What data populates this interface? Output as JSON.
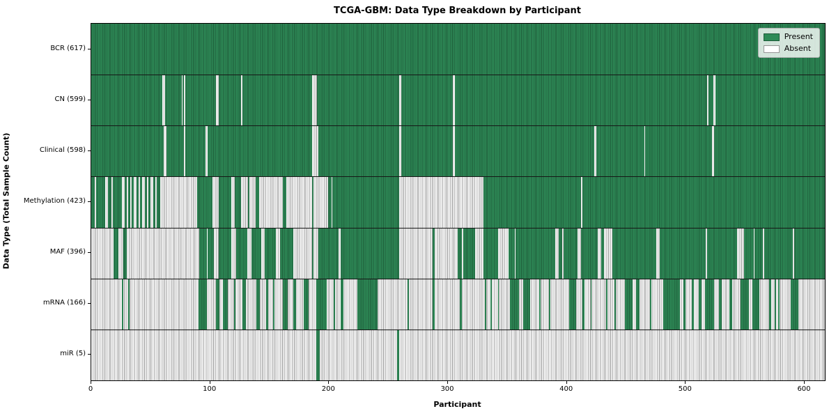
{
  "chart_data": {
    "type": "heatmap",
    "title": "TCGA-GBM: Data Type Breakdown by Participant",
    "xlabel": "Participant",
    "ylabel": "Data Type (Total Sample Count)",
    "x_ticks": [
      0,
      100,
      200,
      300,
      400,
      500,
      600
    ],
    "x_max": 617,
    "grid": false,
    "legend": {
      "position": "upper right",
      "entries": [
        {
          "label": "Present",
          "color": "#2e8b57"
        },
        {
          "label": "Absent",
          "color": "#ffffff"
        }
      ]
    },
    "colors": {
      "present": "#2e8b57",
      "present_edge": "#1d5a38",
      "absent": "#ffffff",
      "absent_edge": "#949494",
      "axis": "#000000",
      "row_separator": "#161616"
    },
    "rows": [
      {
        "id": "bcr",
        "label": "BCR (617)",
        "data_type": "BCR",
        "present_count": 617,
        "base": "present",
        "runs": []
      },
      {
        "id": "cn",
        "label": "CN (599)",
        "data_type": "CN",
        "present_count": 599,
        "base": "present",
        "runs": [
          [
            60,
            62
          ],
          [
            76,
            77
          ],
          [
            78,
            79
          ],
          [
            105,
            107
          ],
          [
            126,
            127
          ],
          [
            186,
            190
          ],
          [
            259,
            261
          ],
          [
            304,
            306
          ],
          [
            518,
            519
          ],
          [
            523,
            525
          ]
        ]
      },
      {
        "id": "clinical",
        "label": "Clinical (598)",
        "data_type": "Clinical",
        "present_count": 598,
        "base": "present",
        "runs": [
          [
            61,
            63
          ],
          [
            78,
            79
          ],
          [
            96,
            98
          ],
          [
            186,
            191
          ],
          [
            259,
            261
          ],
          [
            304,
            306
          ],
          [
            423,
            425
          ],
          [
            465,
            466
          ],
          [
            522,
            524
          ]
        ]
      },
      {
        "id": "methylation",
        "label": "Methylation (423)",
        "data_type": "Methylation",
        "present_count": 423,
        "base": "present",
        "runs": [
          [
            3,
            4
          ],
          [
            12,
            14
          ],
          [
            17,
            18
          ],
          [
            26,
            28
          ],
          [
            30,
            31
          ],
          [
            33,
            34
          ],
          [
            36,
            38
          ],
          [
            40,
            41
          ],
          [
            43,
            45
          ],
          [
            47,
            48
          ],
          [
            50,
            52
          ],
          [
            54,
            55
          ],
          [
            58,
            89
          ],
          [
            102,
            107
          ],
          [
            118,
            121
          ],
          [
            126,
            132
          ],
          [
            133,
            138
          ],
          [
            141,
            161
          ],
          [
            164,
            186
          ],
          [
            187,
            199
          ],
          [
            202,
            203
          ],
          [
            259,
            330
          ],
          [
            412,
            413
          ]
        ]
      },
      {
        "id": "maf",
        "label": "MAF (396)",
        "data_type": "MAF",
        "present_count": 396,
        "base": "present",
        "runs": [
          [
            0,
            19
          ],
          [
            23,
            27
          ],
          [
            30,
            91
          ],
          [
            97,
            98
          ],
          [
            103,
            107
          ],
          [
            118,
            122
          ],
          [
            131,
            135
          ],
          [
            143,
            146
          ],
          [
            155,
            159
          ],
          [
            170,
            186
          ],
          [
            187,
            191
          ],
          [
            208,
            210
          ],
          [
            259,
            287
          ],
          [
            289,
            308
          ],
          [
            312,
            313
          ],
          [
            323,
            330
          ],
          [
            342,
            351
          ],
          [
            356,
            357
          ],
          [
            390,
            393
          ],
          [
            396,
            397
          ],
          [
            409,
            412
          ],
          [
            426,
            429
          ],
          [
            431,
            438
          ],
          [
            475,
            478
          ],
          [
            517,
            518
          ],
          [
            543,
            549
          ],
          [
            557,
            558
          ],
          [
            565,
            566
          ],
          [
            590,
            591
          ]
        ]
      },
      {
        "id": "mrna",
        "label": "mRNA (166)",
        "data_type": "mRNA",
        "present_count": 166,
        "base": "absent",
        "runs": [
          [
            26,
            27
          ],
          [
            31,
            32
          ],
          [
            90,
            97
          ],
          [
            105,
            108
          ],
          [
            111,
            115
          ],
          [
            120,
            121
          ],
          [
            127,
            130
          ],
          [
            139,
            142
          ],
          [
            147,
            149
          ],
          [
            153,
            154
          ],
          [
            161,
            165
          ],
          [
            170,
            172
          ],
          [
            179,
            183
          ],
          [
            189,
            198
          ],
          [
            204,
            205
          ],
          [
            210,
            212
          ],
          [
            224,
            241
          ],
          [
            266,
            267
          ],
          [
            287,
            289
          ],
          [
            310,
            312
          ],
          [
            331,
            332
          ],
          [
            336,
            337
          ],
          [
            342,
            343
          ],
          [
            352,
            360
          ],
          [
            363,
            369
          ],
          [
            377,
            378
          ],
          [
            385,
            386
          ],
          [
            402,
            408
          ],
          [
            413,
            415
          ],
          [
            420,
            421
          ],
          [
            433,
            434
          ],
          [
            440,
            441
          ],
          [
            449,
            455
          ],
          [
            458,
            461
          ],
          [
            470,
            471
          ],
          [
            481,
            495
          ],
          [
            498,
            500
          ],
          [
            505,
            507
          ],
          [
            511,
            513
          ],
          [
            516,
            524
          ],
          [
            528,
            530
          ],
          [
            537,
            539
          ],
          [
            546,
            553
          ],
          [
            556,
            562
          ],
          [
            570,
            572
          ],
          [
            575,
            576
          ],
          [
            578,
            579
          ],
          [
            588,
            595
          ]
        ]
      },
      {
        "id": "mir",
        "label": "miR (5)",
        "data_type": "miR",
        "present_count": 5,
        "base": "absent",
        "runs": [
          [
            189,
            192
          ],
          [
            257,
            259
          ]
        ]
      }
    ]
  }
}
